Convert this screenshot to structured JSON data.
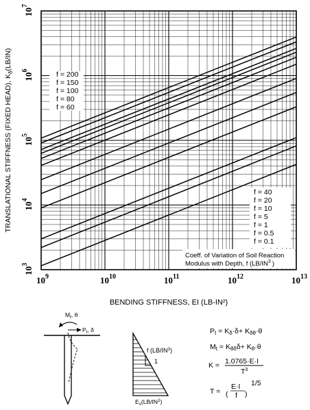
{
  "chart_data": {
    "type": "line",
    "x_scale": "log",
    "y_scale": "log",
    "xlim": [
      1000000000.0,
      10000000000000.0
    ],
    "ylim": [
      1000.0,
      10000000.0
    ],
    "x_ticks": [
      {
        "value": 1000000000.0,
        "mant": "10",
        "exp": "9"
      },
      {
        "value": 10000000000.0,
        "mant": "10",
        "exp": "10"
      },
      {
        "value": 100000000000.0,
        "mant": "10",
        "exp": "11"
      },
      {
        "value": 1000000000000.0,
        "mant": "10",
        "exp": "12"
      },
      {
        "value": 10000000000000.0,
        "mant": "10",
        "exp": "13"
      }
    ],
    "y_ticks": [
      {
        "value": 1000.0,
        "mant": "10",
        "exp": "3"
      },
      {
        "value": 10000.0,
        "mant": "10",
        "exp": "4"
      },
      {
        "value": 100000.0,
        "mant": "10",
        "exp": "5"
      },
      {
        "value": 1000000.0,
        "mant": "10",
        "exp": "6"
      },
      {
        "value": 10000000.0,
        "mant": "10",
        "exp": "7"
      }
    ],
    "xlabel": "BENDING STIFFNESS, EI (LB-IN²)",
    "ylabel": "TRANSLATIONAL STIFFNESS (FIXED HEAD), K",
    "ylabel_sub": "δ",
    "ylabel_units": "(LB/IN)",
    "grid": true,
    "series": [
      {
        "name": "f = 200",
        "x": [
          1000000000.0,
          10000000000000.0
        ],
        "y": [
          108000,
          3960000
        ]
      },
      {
        "name": "f = 150",
        "x": [
          1000000000.0,
          10000000000000.0
        ],
        "y": [
          91000,
          3330000
        ]
      },
      {
        "name": "f = 100",
        "x": [
          1000000000.0,
          10000000000000.0
        ],
        "y": [
          72000,
          2640000
        ]
      },
      {
        "name": "f = 80",
        "x": [
          1000000000.0,
          10000000000000.0
        ],
        "y": [
          62800,
          2300000
        ]
      },
      {
        "name": "f = 60",
        "x": [
          1000000000.0,
          10000000000000.0
        ],
        "y": [
          52400,
          1920000
        ]
      },
      {
        "name": "f = 40",
        "x": [
          1000000000.0,
          10000000000000.0
        ],
        "y": [
          40900,
          1500000
        ]
      },
      {
        "name": "f = 20",
        "x": [
          1000000000.0,
          10000000000000.0
        ],
        "y": [
          24600,
          905000
        ]
      },
      {
        "name": "f = 10",
        "x": [
          1000000000.0,
          10000000000000.0
        ],
        "y": [
          15000,
          550000
        ]
      },
      {
        "name": "f = 5",
        "x": [
          1000000000.0,
          10000000000000.0
        ],
        "y": [
          9000,
          330000
        ]
      },
      {
        "name": "f = 1",
        "x": [
          1000000000.0,
          10000000000000.0
        ],
        "y": [
          3000,
          110000
        ]
      },
      {
        "name": "f = 0.5",
        "x": [
          1000000000.0,
          10000000000000.0
        ],
        "y": [
          2200,
          82000
        ]
      },
      {
        "name": "f = 0.1",
        "x": [
          1000000000.0,
          10000000000000.0
        ],
        "y": [
          1150,
          42500
        ]
      }
    ],
    "legend_upper": [
      "f = 200",
      "f = 150",
      "f = 100",
      "f = 80",
      "f = 60"
    ],
    "legend_lower": [
      "f = 40",
      "f = 20",
      "f = 10",
      "f = 5",
      "f = 1",
      "f = 0.5",
      "f = 0.1"
    ],
    "annotation_line1": "Coeff. of Variation of Soil Reaction",
    "annotation_line2": "Modulus with Depth, f (LB/IN",
    "annotation_sup": "3",
    "annotation_end": ")"
  },
  "diagram": {
    "moment_label": "M",
    "moment_sub": "t",
    "moment_theta": ", θ",
    "force_label": "P",
    "force_sub": "t",
    "force_delta": ", δ",
    "f_label": "f (LB/IN",
    "f_sup": "3",
    "f_end": ")",
    "one_label": "1",
    "es_label": "E",
    "es_sub": "s",
    "es_units": "(LB/IN",
    "es_sup": "2",
    "es_end": ")"
  },
  "equations": {
    "pt": {
      "lhs": "P",
      "lhs_sub": "t",
      "a": " = K",
      "a_sub": "δ",
      "b": "·δ+ K",
      "b_sub": "δθ",
      "c": "·θ"
    },
    "mt": {
      "lhs": "M",
      "lhs_sub": "t",
      "a": " = K",
      "a_sub": "θδ",
      "b": "δ+ K",
      "b_sub": "θ",
      "c": "·θ"
    },
    "k": {
      "lhs": "K = ",
      "num": "1.0765·E·I",
      "den": "T",
      "den_sup": "3"
    },
    "t": {
      "lhs": "T = ",
      "num": "E·I",
      "den": "f",
      "exp": "1/5"
    }
  }
}
